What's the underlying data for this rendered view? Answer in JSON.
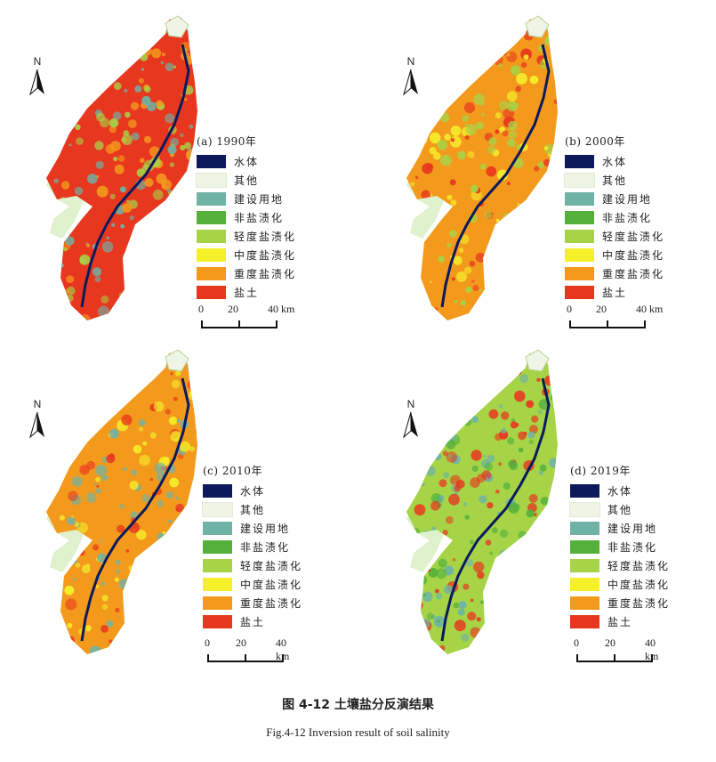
{
  "figure": {
    "caption_cn": "图 4-12  土壤盐分反演结果",
    "caption_en": "Fig.4-12 Inversion result of soil salinity"
  },
  "north_label": "N",
  "legend_classes": [
    {
      "label": "水体",
      "color": "#0c1a5c"
    },
    {
      "label": "其他",
      "color": "#eef5e4"
    },
    {
      "label": "建设用地",
      "color": "#6fb3a6"
    },
    {
      "label": "非盐渍化",
      "color": "#55b13c"
    },
    {
      "label": "轻度盐渍化",
      "color": "#a6d446"
    },
    {
      "label": "中度盐渍化",
      "color": "#f5f02a"
    },
    {
      "label": "重度盐渍化",
      "color": "#f39a1c"
    },
    {
      "label": "盐土",
      "color": "#e8371f"
    }
  ],
  "scale": {
    "ticks": [
      "0",
      "20",
      "40 km"
    ]
  },
  "panels": [
    {
      "id": "a",
      "title": "(a) 1990年",
      "year": 1990,
      "dominant_classes": [
        "盐土",
        "重度盐渍化"
      ]
    },
    {
      "id": "b",
      "title": "(b) 2000年",
      "year": 2000,
      "dominant_classes": [
        "重度盐渍化",
        "中度盐渍化"
      ]
    },
    {
      "id": "c",
      "title": "(c) 2010年",
      "year": 2010,
      "dominant_classes": [
        "重度盐渍化",
        "中度盐渍化"
      ]
    },
    {
      "id": "d",
      "title": "(d) 2019年",
      "year": 2019,
      "dominant_classes": [
        "轻度盐渍化",
        "非盐渍化",
        "建设用地"
      ]
    }
  ]
}
